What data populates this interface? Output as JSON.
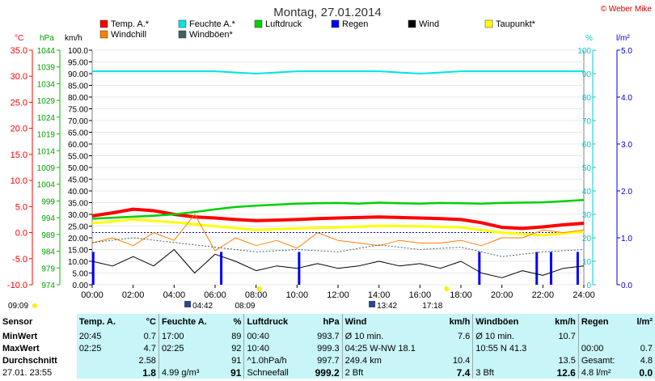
{
  "header": {
    "title": "Montag, 27.01.2014",
    "credit": "© Weber Mike"
  },
  "legend": [
    {
      "name": "Temp. A.*",
      "color": "#ff0000"
    },
    {
      "name": "Feuchte A.*",
      "color": "#00e5e5"
    },
    {
      "name": "Luftdruck",
      "color": "#00d000"
    },
    {
      "name": "Regen",
      "color": "#0000ff"
    },
    {
      "name": "Wind",
      "color": "#000000"
    },
    {
      "name": "Taupunkt*",
      "color": "#ffff00"
    },
    {
      "name": "Windchill",
      "color": "#ff8000"
    },
    {
      "name": "Windböen*",
      "color": "#406060"
    }
  ],
  "axis_units": {
    "temp": "°C",
    "press": "hPa",
    "wind": "km/h",
    "hum": "%",
    "rain": "l/m²"
  },
  "axes": {
    "temp_ticks": [
      "35.0",
      "30.0",
      "25.0",
      "20.0",
      "15.0",
      "10.0",
      "5.0",
      "0.0",
      "-5.0",
      "-10.0"
    ],
    "press_ticks": [
      "1044",
      "1039",
      "1034",
      "1029",
      "1024",
      "1019",
      "1014",
      "1009",
      "1004",
      "999",
      "994",
      "989",
      "984",
      "979",
      "974"
    ],
    "wind_ticks": [
      "100.0",
      "95.00",
      "90.00",
      "85.00",
      "80.00",
      "75.00",
      "70.00",
      "65.00",
      "60.00",
      "55.00",
      "50.00",
      "45.00",
      "40.00",
      "35.00",
      "30.00",
      "25.00",
      "20.00",
      "15.00",
      "10.00",
      "5.00",
      "0.00"
    ],
    "hum_ticks": [
      "100",
      "90",
      "80",
      "70",
      "60",
      "50",
      "40",
      "30",
      "20",
      "10",
      "0"
    ],
    "rain_ticks": [
      "5.0",
      "4.0",
      "3.0",
      "2.0",
      "1.0",
      "0.0"
    ],
    "time_ticks": [
      "00:00",
      "02:00",
      "04:00",
      "06:00",
      "08:00",
      "10:00",
      "12:00",
      "14:00",
      "16:00",
      "18:00",
      "20:00",
      "22:00",
      "24:00"
    ]
  },
  "sun_moon": {
    "moon_set": "04:42",
    "sunrise": "08:09",
    "moon_rise": "13:42",
    "sunset": "17:18",
    "left": "09:09"
  },
  "chart_data": {
    "type": "line",
    "x_unit": "hour of day",
    "xlim": [
      0,
      24
    ],
    "series": [
      {
        "name": "Temp. A.*",
        "axis": "temp",
        "x": [
          0,
          1,
          2,
          3,
          4,
          5,
          6,
          7,
          8,
          9,
          10,
          11,
          12,
          13,
          14,
          15,
          16,
          17,
          18,
          19,
          20,
          21,
          22,
          23,
          24
        ],
        "values": [
          3.2,
          3.8,
          4.5,
          4.2,
          3.5,
          3.0,
          2.8,
          2.5,
          2.3,
          2.4,
          2.5,
          2.7,
          2.8,
          2.9,
          3.0,
          2.9,
          2.8,
          2.7,
          2.5,
          1.9,
          1.0,
          0.8,
          1.1,
          1.5,
          1.8
        ]
      },
      {
        "name": "Feuchte A.*",
        "axis": "hum",
        "x": [
          0,
          2,
          4,
          6,
          8,
          10,
          12,
          14,
          16,
          18,
          20,
          22,
          24
        ],
        "values": [
          91,
          91,
          91,
          91,
          90,
          91,
          91,
          91,
          90,
          91,
          91,
          91,
          91
        ]
      },
      {
        "name": "Luftdruck",
        "axis": "press",
        "x": [
          0,
          1,
          2,
          3,
          4,
          5,
          6,
          7,
          8,
          9,
          10,
          11,
          12,
          13,
          14,
          15,
          16,
          17,
          18,
          19,
          20,
          21,
          22,
          23,
          24
        ],
        "values": [
          993.7,
          994.0,
          994.3,
          994.6,
          995.0,
          995.7,
          996.5,
          997.2,
          997.6,
          997.9,
          998.2,
          998.3,
          998.4,
          998.2,
          998.5,
          998.3,
          998.2,
          998.4,
          998.3,
          998.2,
          998.4,
          998.5,
          998.6,
          998.9,
          999.3
        ]
      },
      {
        "name": "Taupunkt*",
        "axis": "temp",
        "x": [
          0,
          2,
          4,
          6,
          8,
          10,
          12,
          14,
          16,
          18,
          20,
          22,
          24
        ],
        "values": [
          1.8,
          2.5,
          2.0,
          1.2,
          0.5,
          0.8,
          1.0,
          1.3,
          1.2,
          1.0,
          0.0,
          -0.5,
          0.2
        ]
      },
      {
        "name": "Windchill",
        "axis": "temp",
        "x": [
          0,
          1,
          2,
          3,
          4,
          5,
          6,
          7,
          8,
          9,
          10,
          11,
          12,
          13,
          14,
          15,
          16,
          17,
          18,
          19,
          20,
          21,
          22,
          23,
          24
        ],
        "values": [
          -2.0,
          -1.0,
          -2.5,
          0.0,
          -1.5,
          3.5,
          -3.5,
          -1.0,
          -2.5,
          -1.5,
          -3.0,
          0.0,
          -1.5,
          -2.0,
          -2.5,
          -1.5,
          -2.0,
          -2.0,
          -1.5,
          -2.5,
          -1.0,
          -1.0,
          0.5,
          0.0,
          0.5
        ]
      },
      {
        "name": "Wind",
        "axis": "wind",
        "x": [
          0,
          1,
          2,
          3,
          4,
          5,
          6,
          7,
          8,
          9,
          10,
          11,
          12,
          13,
          14,
          15,
          16,
          17,
          18,
          19,
          20,
          21,
          22,
          23,
          24
        ],
        "values": [
          10,
          8,
          12,
          8,
          15,
          5,
          13,
          10,
          6,
          8,
          7,
          9,
          7,
          8,
          10,
          8,
          9,
          7,
          10,
          5,
          3,
          6,
          4,
          7,
          8
        ]
      },
      {
        "name": "Windböen*",
        "axis": "wind",
        "x": [
          0,
          2,
          4,
          6,
          8,
          10,
          12,
          14,
          16,
          18,
          20,
          22,
          24
        ],
        "values": [
          18,
          20,
          18,
          16,
          14,
          15,
          14,
          17,
          15,
          16,
          12,
          14,
          15
        ]
      }
    ],
    "rain_bars": [
      {
        "time": 0.05,
        "height": 0.7
      },
      {
        "time": 6.3,
        "height": 0.7
      },
      {
        "time": 10.1,
        "height": 0.7
      },
      {
        "time": 18.9,
        "height": 0.7
      },
      {
        "time": 21.7,
        "height": 0.7
      },
      {
        "time": 22.4,
        "height": 0.7
      },
      {
        "time": 23.7,
        "height": 0.7
      }
    ],
    "freezing_level_temp": 0.0
  },
  "stats": {
    "headers": [
      "Sensor",
      "Temp. A.",
      "°C",
      "Feuchte A.",
      "%",
      "Luftdruck",
      "hPa",
      "Wind",
      "km/h",
      "Windböen",
      "km/h",
      "Regen",
      "l/m²"
    ],
    "rows": [
      {
        "label": "MinWert",
        "cells": [
          "20:45",
          "0.7",
          "17:00",
          "89",
          "00:40",
          "993.7",
          "Ø 10 min.",
          "7.6",
          "Ø 10 min.",
          "10.7",
          "",
          ""
        ]
      },
      {
        "label": "MaxWert",
        "cells": [
          "02:25",
          "4.7",
          "02:25",
          "92",
          "10:40",
          "999.3",
          "04:25   W-NW 18.1",
          "",
          "10:55     N 41.3",
          "",
          "00:00",
          "0.7"
        ]
      },
      {
        "label": "Durchschnitt",
        "cells": [
          "",
          "2.58",
          "",
          "91",
          "^1.0hPa/h",
          "997.7",
          "249.4 km",
          "10.4",
          "",
          "13.5",
          "Gesamt:",
          "4.8"
        ]
      },
      {
        "label": "27.01. 23:55",
        "cells": [
          "",
          "1.8",
          "4.99 g/m³",
          "91",
          "Schneefall",
          "999.2",
          "2 Bft",
          "7.4",
          "3 Bft",
          "12.6",
          "4.8 l/m²",
          "0.0"
        ]
      }
    ]
  }
}
